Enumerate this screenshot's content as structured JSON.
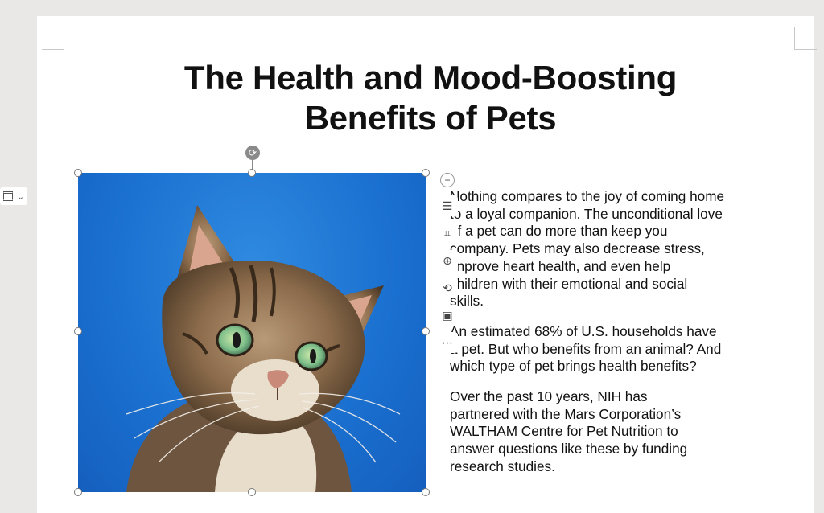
{
  "document": {
    "title_lines": [
      "The Health and Mood-Boosting",
      "Benefits of Pets"
    ],
    "paragraphs": [
      {
        "lines": [
          "Nothing compares to the joy of coming home",
          "to a loyal companion. The unconditional love",
          "of a pet can do more than keep you",
          "company. Pets may also decrease stress,",
          "improve heart health,  and  even  help",
          "children  with  their emotional and social",
          "skills."
        ]
      },
      {
        "lines": [
          "An estimated 68% of U.S. households have",
          "a pet. But who benefits from an animal? And",
          "which type of pet brings health benefits?"
        ]
      },
      {
        "lines": [
          "Over  the  past  10  years,  NIH  has",
          "partnered with the Mars Corporation’s",
          "WALTHAM Centre for  Pet  Nutrition  to",
          "answer  questions  like these by funding",
          "research studies."
        ]
      }
    ]
  },
  "image": {
    "subject": "tabby cat against blue sky",
    "sky_color": "#1a6fcf"
  },
  "image_toolbar": {
    "collapse_icon": "minus-icon",
    "buttons": [
      {
        "name": "wrap-text",
        "icon": "wrap-text-icon",
        "glyph": "☰"
      },
      {
        "name": "crop",
        "icon": "crop-icon",
        "glyph": "⌗"
      },
      {
        "name": "zoom",
        "icon": "zoom-in-icon",
        "glyph": "⊕"
      },
      {
        "name": "rotate",
        "icon": "rotate-icon",
        "glyph": "⟲"
      },
      {
        "name": "replace-image",
        "icon": "replace-image-icon",
        "glyph": "▣"
      },
      {
        "name": "more",
        "icon": "more-icon",
        "glyph": "⋯"
      }
    ]
  },
  "layout_options": {
    "icon": "layout-options-icon",
    "chevron": "chevron-down-icon",
    "chevron_glyph": "⌄"
  }
}
